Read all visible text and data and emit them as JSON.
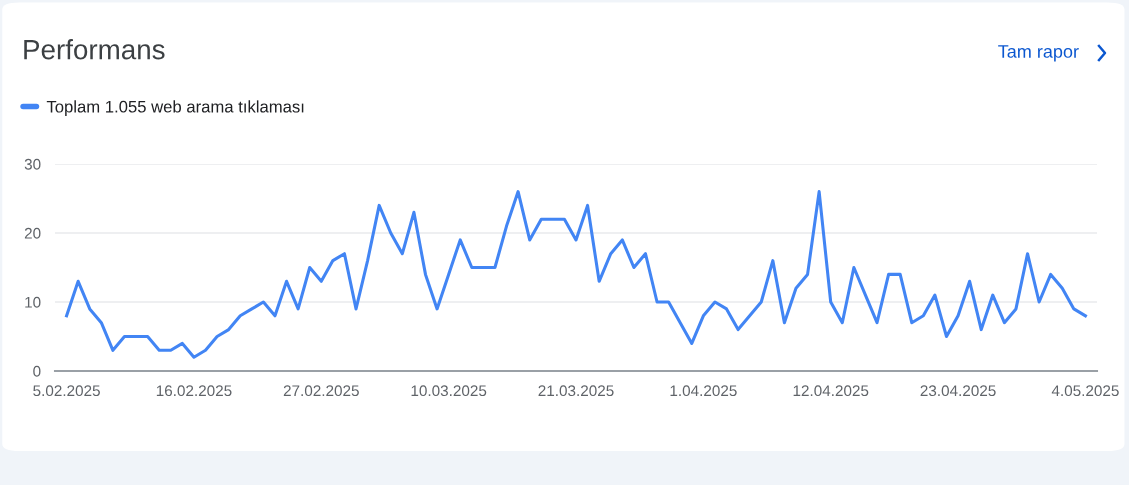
{
  "chart_data": {
    "type": "line",
    "title": "Performans",
    "annotations": [
      "Tam rapor"
    ],
    "x": [
      "2025-02-05",
      "2025-02-06",
      "2025-02-07",
      "2025-02-08",
      "2025-02-09",
      "2025-02-10",
      "2025-02-11",
      "2025-02-12",
      "2025-02-13",
      "2025-02-14",
      "2025-02-15",
      "2025-02-16",
      "2025-02-17",
      "2025-02-18",
      "2025-02-19",
      "2025-02-20",
      "2025-02-21",
      "2025-02-22",
      "2025-02-23",
      "2025-02-24",
      "2025-02-25",
      "2025-02-26",
      "2025-02-27",
      "2025-02-28",
      "2025-03-01",
      "2025-03-02",
      "2025-03-03",
      "2025-03-04",
      "2025-03-05",
      "2025-03-06",
      "2025-03-07",
      "2025-03-08",
      "2025-03-09",
      "2025-03-10",
      "2025-03-11",
      "2025-03-12",
      "2025-03-13",
      "2025-03-14",
      "2025-03-15",
      "2025-03-16",
      "2025-03-17",
      "2025-03-18",
      "2025-03-19",
      "2025-03-20",
      "2025-03-21",
      "2025-03-22",
      "2025-03-23",
      "2025-03-24",
      "2025-03-25",
      "2025-03-26",
      "2025-03-27",
      "2025-03-28",
      "2025-03-29",
      "2025-03-30",
      "2025-03-31",
      "2025-04-01",
      "2025-04-02",
      "2025-04-03",
      "2025-04-04",
      "2025-04-05",
      "2025-04-06",
      "2025-04-07",
      "2025-04-08",
      "2025-04-09",
      "2025-04-10",
      "2025-04-11",
      "2025-04-12",
      "2025-04-13",
      "2025-04-14",
      "2025-04-15",
      "2025-04-16",
      "2025-04-17",
      "2025-04-18",
      "2025-04-19",
      "2025-04-20",
      "2025-04-21",
      "2025-04-22",
      "2025-04-23",
      "2025-04-24",
      "2025-04-25",
      "2025-04-26",
      "2025-04-27",
      "2025-04-28",
      "2025-04-29",
      "2025-04-30",
      "2025-05-01",
      "2025-05-02",
      "2025-05-03",
      "2025-05-04"
    ],
    "series": [
      {
        "name": "Toplam 1.055 web arama tıklaması",
        "color": "#4285f4",
        "values": [
          8,
          13,
          9,
          7,
          3,
          5,
          5,
          5,
          3,
          3,
          4,
          2,
          3,
          5,
          6,
          8,
          9,
          10,
          8,
          13,
          9,
          15,
          13,
          16,
          17,
          9,
          16,
          24,
          20,
          17,
          23,
          14,
          9,
          14,
          19,
          15,
          15,
          15,
          21,
          26,
          19,
          22,
          22,
          22,
          19,
          24,
          13,
          17,
          19,
          15,
          17,
          10,
          10,
          7,
          4,
          8,
          10,
          9,
          6,
          8,
          10,
          16,
          7,
          12,
          14,
          26,
          10,
          7,
          15,
          11,
          7,
          14,
          14,
          7,
          8,
          11,
          5,
          8,
          13,
          6,
          11,
          7,
          9,
          17,
          10,
          14,
          12,
          9,
          8
        ]
      }
    ],
    "xlim": [
      "2025-02-04",
      "2025-05-05"
    ],
    "xticks": [
      {
        "value": "2025-02-05",
        "label": "5.02.2025"
      },
      {
        "value": "2025-02-16",
        "label": "16.02.2025"
      },
      {
        "value": "2025-02-27",
        "label": "27.02.2025"
      },
      {
        "value": "2025-03-10",
        "label": "10.03.2025"
      },
      {
        "value": "2025-03-21",
        "label": "21.03.2025"
      },
      {
        "value": "2025-04-01",
        "label": "1.04.2025"
      },
      {
        "value": "2025-04-12",
        "label": "12.04.2025"
      },
      {
        "value": "2025-04-23",
        "label": "23.04.2025"
      },
      {
        "value": "2025-05-04",
        "label": "4.05.2025"
      }
    ],
    "ylim": [
      0,
      30
    ],
    "yticks": [
      0,
      10,
      20,
      30
    ],
    "grid": "y",
    "legend": "top left",
    "marker": "none",
    "line_style": "solid"
  }
}
